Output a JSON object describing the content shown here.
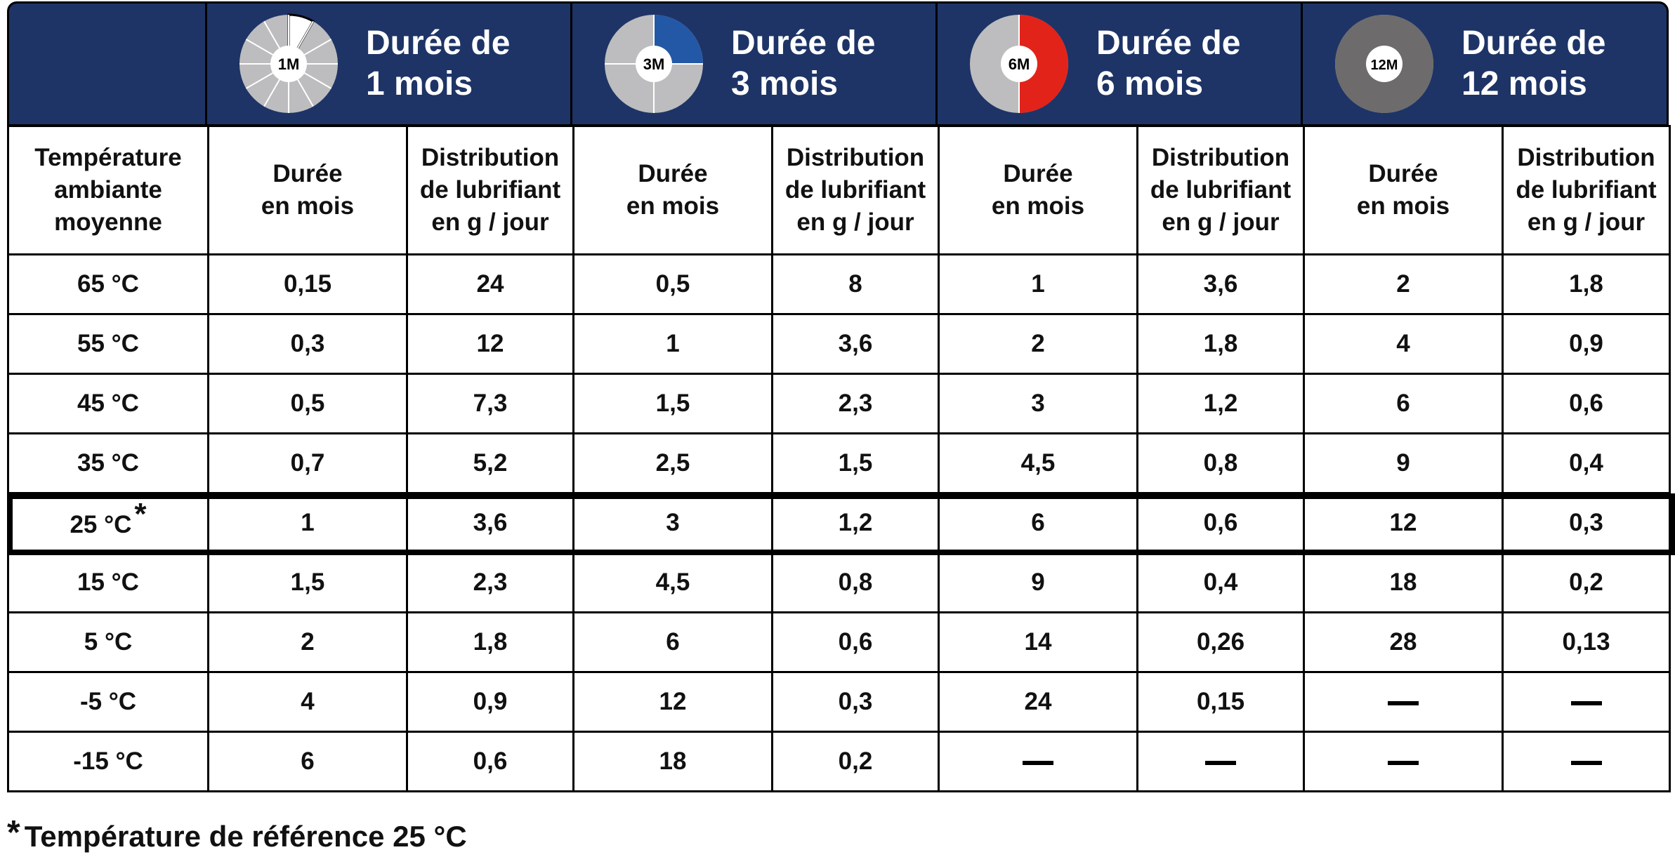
{
  "headers": [
    {
      "badge": "1M",
      "line1": "Durée de",
      "line2": "1 mois",
      "dial_color": "#ffffff",
      "fill_fraction": 0.0833
    },
    {
      "badge": "3M",
      "line1": "Durée de",
      "line2": "3 mois",
      "dial_color": "#2358a6",
      "fill_fraction": 0.25
    },
    {
      "badge": "6M",
      "line1": "Durée de",
      "line2": "6 mois",
      "dial_color": "#e2231a",
      "fill_fraction": 0.5
    },
    {
      "badge": "12M",
      "line1": "Durée de",
      "line2": "12 mois",
      "dial_color": "#6d6b6c",
      "fill_fraction": 1.0
    }
  ],
  "colors": {
    "header_bg": "#1e3466",
    "dial_base": "#bdbdbf"
  },
  "subheaders": {
    "temp": [
      "Température",
      "ambiante",
      "moyenne"
    ],
    "duration": [
      "Durée",
      "en mois"
    ],
    "distribution": [
      "Distribution",
      "de lubrifiant",
      "en g / jour"
    ]
  },
  "rows": [
    {
      "temp": "65 °C",
      "cells": [
        "0,15",
        "24",
        "0,5",
        "8",
        "1",
        "3,6",
        "2",
        "1,8"
      ]
    },
    {
      "temp": "55 °C",
      "cells": [
        "0,3",
        "12",
        "1",
        "3,6",
        "2",
        "1,8",
        "4",
        "0,9"
      ]
    },
    {
      "temp": "45 °C",
      "cells": [
        "0,5",
        "7,3",
        "1,5",
        "2,3",
        "3",
        "1,2",
        "6",
        "0,6"
      ]
    },
    {
      "temp": "35 °C",
      "cells": [
        "0,7",
        "5,2",
        "2,5",
        "1,5",
        "4,5",
        "0,8",
        "9",
        "0,4"
      ]
    },
    {
      "temp": "25 °C",
      "reference": true,
      "cells": [
        "1",
        "3,6",
        "3",
        "1,2",
        "6",
        "0,6",
        "12",
        "0,3"
      ]
    },
    {
      "temp": "15 °C",
      "cells": [
        "1,5",
        "2,3",
        "4,5",
        "0,8",
        "9",
        "0,4",
        "18",
        "0,2"
      ]
    },
    {
      "temp": "5 °C",
      "cells": [
        "2",
        "1,8",
        "6",
        "0,6",
        "14",
        "0,26",
        "28",
        "0,13"
      ]
    },
    {
      "temp": "-5 °C",
      "cells": [
        "4",
        "0,9",
        "12",
        "0,3",
        "24",
        "0,15",
        "—",
        "—"
      ]
    },
    {
      "temp": "-15 °C",
      "cells": [
        "6",
        "0,6",
        "18",
        "0,2",
        "—",
        "—",
        "—",
        "—"
      ]
    }
  ],
  "reference_mark": "*",
  "footnote": {
    "star": "*",
    "text": "Température de référence 25 °C"
  }
}
